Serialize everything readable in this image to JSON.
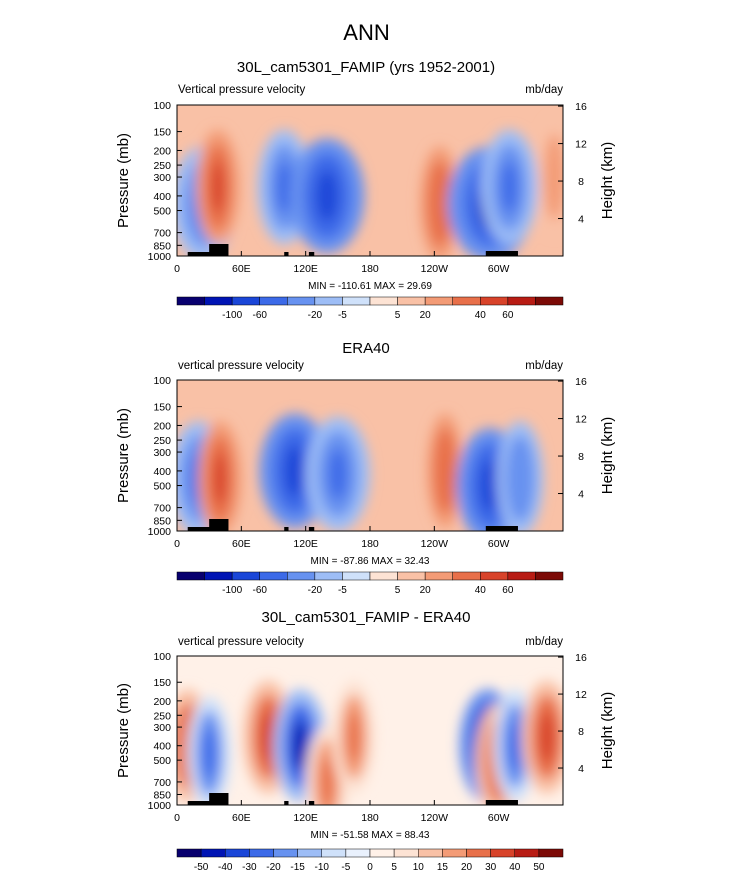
{
  "page_title": "ANN",
  "panels": [
    {
      "title": "30L_cam5301_FAMIP (yrs 1952-2001)",
      "left_label": "Vertical pressure velocity",
      "right_label": "mb/day",
      "stats": "MIN = -110.61  MAX =  29.69",
      "colorbar_labels": [
        "-100",
        "-60",
        "-20",
        "-5",
        "5",
        "20",
        "40",
        "60"
      ]
    },
    {
      "title": "ERA40",
      "left_label": "vertical pressure velocity",
      "right_label": "mb/day",
      "stats": "MIN = -87.86  MAX =  32.43",
      "colorbar_labels": [
        "-100",
        "-60",
        "-20",
        "-5",
        "5",
        "20",
        "40",
        "60"
      ]
    },
    {
      "title": "30L_cam5301_FAMIP - ERA40",
      "left_label": "vertical pressure velocity",
      "right_label": "mb/day",
      "stats": "MIN = -51.58  MAX =  88.43",
      "colorbar_labels": [
        "-50",
        "-40",
        "-30",
        "-20",
        "-15",
        "-10",
        "-5",
        "0",
        "5",
        "10",
        "15",
        "20",
        "30",
        "40",
        "50"
      ]
    }
  ],
  "colors": {
    "panel_1_2": [
      "#08006f",
      "#0014b4",
      "#1a46d8",
      "#3c6ae8",
      "#6792f0",
      "#9dbdf6",
      "#cfe1fa",
      "#fde3d4",
      "#f9c1a6",
      "#f39b76",
      "#e8704a",
      "#d8432a",
      "#b81c14",
      "#7c0a06"
    ],
    "panel_3": [
      "#08006f",
      "#0014b4",
      "#1a46d8",
      "#3c6ae8",
      "#6792f0",
      "#9dbdf6",
      "#cfe1fa",
      "#e9f1fd",
      "#fff1e8",
      "#fde3d4",
      "#f9c1a6",
      "#f39b76",
      "#e8704a",
      "#d8432a",
      "#b81c14",
      "#7c0a06"
    ]
  },
  "chart_data": [
    {
      "type": "heatmap",
      "title": "30L_cam5301_FAMIP (yrs 1952-2001)",
      "ylabel": "Pressure (mb)",
      "ylabel_right": "Height (km)",
      "x_ticks": [
        "0",
        "60E",
        "120E",
        "180",
        "120W",
        "60W"
      ],
      "x_tick_values": [
        0,
        60,
        120,
        180,
        240,
        300
      ],
      "xlim": [
        0,
        360
      ],
      "y_ticks": [
        "100",
        "150",
        "200",
        "250",
        "300",
        "400",
        "500",
        "700",
        "850",
        "1000"
      ],
      "y_tick_values": [
        100,
        150,
        200,
        250,
        300,
        400,
        500,
        700,
        850,
        1000
      ],
      "y_scale": "log",
      "ylim": [
        1000,
        100
      ],
      "right_ticks": [
        "4",
        "8",
        "12",
        "16"
      ],
      "right_tick_values": [
        4,
        8,
        12,
        16
      ],
      "contour_levels": [
        -100,
        -80,
        -60,
        -40,
        -20,
        -10,
        -5,
        0,
        5,
        10,
        20,
        30,
        40,
        50,
        60
      ],
      "features": [
        {
          "lon": 25,
          "p": 450,
          "value": -55
        },
        {
          "lon": 38,
          "p": 350,
          "value": 25
        },
        {
          "lon": 100,
          "p": 350,
          "value": -40
        },
        {
          "lon": 140,
          "p": 400,
          "value": -70
        },
        {
          "lon": 245,
          "p": 450,
          "value": 20
        },
        {
          "lon": 292,
          "p": 450,
          "value": -85
        },
        {
          "lon": 310,
          "p": 350,
          "value": -45
        },
        {
          "lon": 352,
          "p": 300,
          "value": 10
        }
      ],
      "min": -110.61,
      "max": 29.69
    },
    {
      "type": "heatmap",
      "title": "ERA40",
      "ylabel": "Pressure (mb)",
      "ylabel_right": "Height (km)",
      "x_ticks": [
        "0",
        "60E",
        "120E",
        "180",
        "120W",
        "60W"
      ],
      "x_tick_values": [
        0,
        60,
        120,
        180,
        240,
        300
      ],
      "xlim": [
        0,
        360
      ],
      "y_ticks": [
        "100",
        "150",
        "200",
        "250",
        "300",
        "400",
        "500",
        "700",
        "850",
        "1000"
      ],
      "y_tick_values": [
        100,
        150,
        200,
        250,
        300,
        400,
        500,
        700,
        850,
        1000
      ],
      "y_scale": "log",
      "ylim": [
        1000,
        100
      ],
      "right_ticks": [
        "4",
        "8",
        "12",
        "16"
      ],
      "right_tick_values": [
        4,
        8,
        12,
        16
      ],
      "contour_levels": [
        -100,
        -80,
        -60,
        -40,
        -20,
        -10,
        -5,
        0,
        5,
        10,
        20,
        30,
        40,
        50,
        60
      ],
      "features": [
        {
          "lon": 20,
          "p": 450,
          "value": -45
        },
        {
          "lon": 40,
          "p": 450,
          "value": 25
        },
        {
          "lon": 110,
          "p": 400,
          "value": -65
        },
        {
          "lon": 150,
          "p": 420,
          "value": -55
        },
        {
          "lon": 250,
          "p": 400,
          "value": 15
        },
        {
          "lon": 292,
          "p": 500,
          "value": -60
        },
        {
          "lon": 320,
          "p": 450,
          "value": -30
        }
      ],
      "min": -87.86,
      "max": 32.43
    },
    {
      "type": "heatmap",
      "title": "30L_cam5301_FAMIP - ERA40",
      "ylabel": "Pressure (mb)",
      "ylabel_right": "Height (km)",
      "x_ticks": [
        "0",
        "60E",
        "120E",
        "180",
        "120W",
        "60W"
      ],
      "x_tick_values": [
        0,
        60,
        120,
        180,
        240,
        300
      ],
      "xlim": [
        0,
        360
      ],
      "y_ticks": [
        "100",
        "150",
        "200",
        "250",
        "300",
        "400",
        "500",
        "700",
        "850",
        "1000"
      ],
      "y_tick_values": [
        100,
        150,
        200,
        250,
        300,
        400,
        500,
        700,
        850,
        1000
      ],
      "y_scale": "log",
      "ylim": [
        1000,
        100
      ],
      "right_ticks": [
        "4",
        "8",
        "12",
        "16"
      ],
      "right_tick_values": [
        4,
        8,
        12,
        16
      ],
      "contour_levels": [
        -50,
        -40,
        -30,
        -20,
        -15,
        -10,
        -5,
        0,
        5,
        10,
        15,
        20,
        30,
        40,
        50
      ],
      "features": [
        {
          "lon": 10,
          "p": 400,
          "value": 30
        },
        {
          "lon": 30,
          "p": 450,
          "value": -25
        },
        {
          "lon": 85,
          "p": 350,
          "value": 35
        },
        {
          "lon": 115,
          "p": 400,
          "value": -40
        },
        {
          "lon": 140,
          "p": 700,
          "value": 25
        },
        {
          "lon": 165,
          "p": 350,
          "value": 25
        },
        {
          "lon": 290,
          "p": 400,
          "value": -45
        },
        {
          "lon": 300,
          "p": 500,
          "value": 30
        },
        {
          "lon": 315,
          "p": 400,
          "value": -25
        },
        {
          "lon": 345,
          "p": 350,
          "value": 35
        }
      ],
      "min": -51.58,
      "max": 88.43
    }
  ]
}
